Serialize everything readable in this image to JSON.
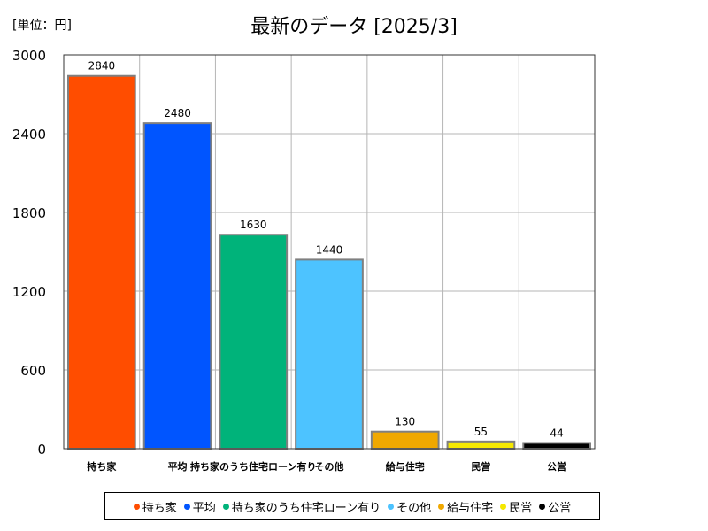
{
  "header": {
    "unit": "[単位：円]",
    "title": "最新のデータ [2025/3]"
  },
  "chart_data": {
    "type": "bar",
    "title": "最新のデータ [2025/3]",
    "unit": "[単位：円]",
    "categories": [
      "持ち家",
      "平均",
      "持ち家のうち住宅ローン有り",
      "その他",
      "給与住宅",
      "民営",
      "公営"
    ],
    "values": [
      2840,
      2480,
      1630,
      1440,
      130,
      55,
      44
    ],
    "data_labels": [
      "2840",
      "2480",
      "1630",
      "1440",
      "130",
      "55",
      "44"
    ],
    "colors": [
      "#ff4d00",
      "#0055ff",
      "#00b37a",
      "#4dc3ff",
      "#f0a800",
      "#f5e800",
      "#000000"
    ],
    "ylim": [
      0,
      3000
    ],
    "yticks": [
      0,
      600,
      1200,
      1800,
      2400,
      3000
    ],
    "ytick_labels": [
      "0",
      "600",
      "1200",
      "1800",
      "2400",
      "3000"
    ],
    "grid": true,
    "legend_position": "bottom"
  }
}
